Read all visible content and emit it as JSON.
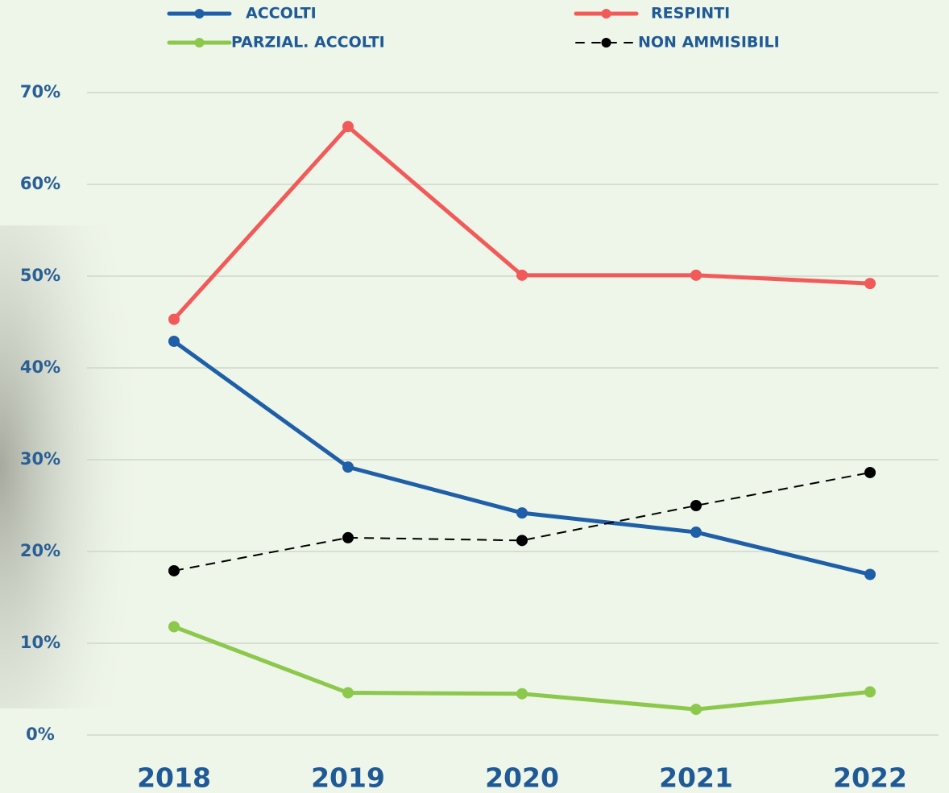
{
  "chart_data": {
    "type": "line",
    "categories": [
      "2018",
      "2019",
      "2020",
      "2021",
      "2022"
    ],
    "series": [
      {
        "name": "ACCOLTI",
        "color": "#1f5fa8",
        "linestyle": "solid",
        "values": [
          42.9,
          29.2,
          24.2,
          22.1,
          17.5
        ]
      },
      {
        "name": "RESPINTI",
        "color": "#f25a5a",
        "linestyle": "solid",
        "values": [
          45.3,
          66.3,
          50.1,
          50.1,
          49.2
        ]
      },
      {
        "name": "PARZIAL. ACCOLTI",
        "color": "#8cc84b",
        "linestyle": "solid",
        "values": [
          11.8,
          4.6,
          4.5,
          2.8,
          4.7
        ]
      },
      {
        "name": "NON AMMISIBILI",
        "color": "#000000",
        "linestyle": "dashed",
        "values": [
          17.9,
          21.5,
          21.2,
          25.0,
          28.6
        ]
      }
    ],
    "ylim": [
      0,
      70
    ],
    "yticks": [
      {
        "value": 0,
        "label": "0%"
      },
      {
        "value": 10,
        "label": "10%"
      },
      {
        "value": 20,
        "label": "20%"
      },
      {
        "value": 30,
        "label": "30%"
      },
      {
        "value": 40,
        "label": "40%"
      },
      {
        "value": 50,
        "label": "50%"
      },
      {
        "value": 60,
        "label": "60%"
      },
      {
        "value": 70,
        "label": "70%"
      }
    ],
    "grid": true
  }
}
